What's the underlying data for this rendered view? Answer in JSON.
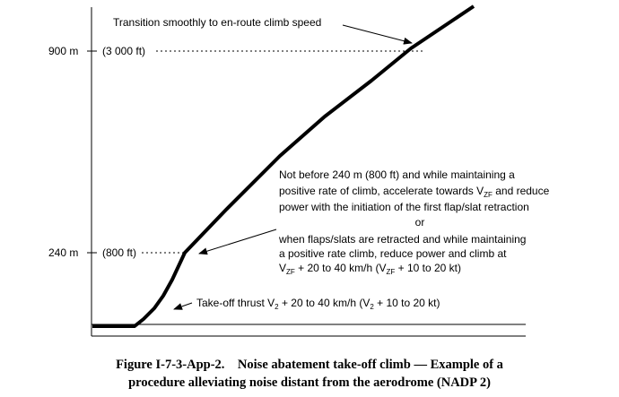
{
  "axis": {
    "tick_900": "900 m",
    "tick_900_ft": "(3 000 ft)",
    "tick_240": "240 m",
    "tick_240_ft": "(800 ft)"
  },
  "annotations": {
    "transition": "Transition smoothly to en-route climb speed",
    "accel_line1": "Not before 240 m (800 ft) and while maintaining a",
    "accel_line2_pre": "positive rate of climb, accelerate towards V",
    "accel_line2_sub": "ZF",
    "accel_line2_post": " and reduce",
    "accel_line3": "power with the initiation of the first flap/slat retraction",
    "or": "or",
    "flaps_line1": "when flaps/slats are retracted and while maintaining",
    "flaps_line2": "a positive rate climb, reduce power and climb at",
    "flaps_line3_v1": "V",
    "flaps_line3_sub1": "ZF",
    "flaps_line3_mid": " + 20 to 40 km/h (V",
    "flaps_line3_sub2": "ZF",
    "flaps_line3_post": " + 10 to 20 kt)",
    "takeoff_pre": "Take-off thrust V",
    "takeoff_sub1": "2",
    "takeoff_mid": " + 20 to 40 km/h (V",
    "takeoff_sub2": "2",
    "takeoff_post": " + 10 to 20 kt)"
  },
  "caption": {
    "line1": "Figure I-7-3-App-2.    Noise abatement take-off climb — Example of a",
    "line2": "procedure alleviating noise distant from the aerodrome (NADP 2)"
  },
  "colors": {
    "ink": "#000000",
    "background": "#ffffff"
  }
}
